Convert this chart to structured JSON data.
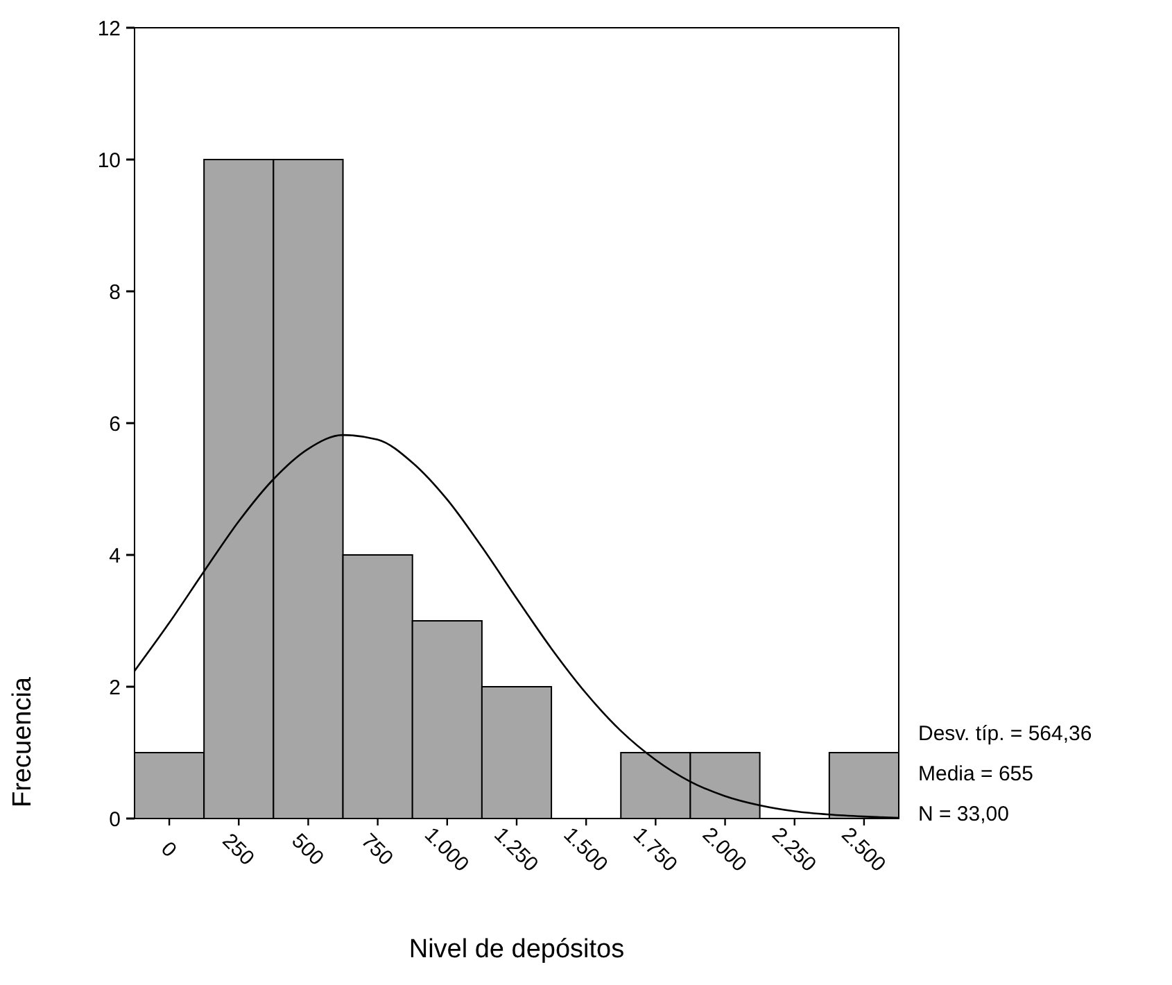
{
  "chart_data": {
    "type": "histogram",
    "xlabel": "Nivel de depósitos",
    "ylabel": "Frecuencia",
    "bins": [
      -125,
      125,
      375,
      625,
      875,
      1125,
      1375,
      1625,
      1875,
      2125,
      2375,
      2625
    ],
    "values": [
      1,
      10,
      10,
      4,
      3,
      2,
      0,
      1,
      1,
      0,
      1
    ],
    "color": "#a6a6a6",
    "series": [
      {
        "type": "line",
        "color": "#000000",
        "x": [
          -125,
          0,
          125,
          250,
          375,
          500,
          625,
          750,
          875,
          1000,
          1125,
          1250,
          1375,
          1500,
          1625,
          1750,
          1875,
          2000,
          2125,
          2250,
          2375,
          2500,
          2625
        ],
        "values": [
          2.24,
          2.97,
          3.75,
          4.51,
          5.15,
          5.61,
          5.82,
          5.75,
          5.4,
          4.84,
          4.12,
          3.34,
          2.58,
          1.9,
          1.33,
          0.89,
          0.56,
          0.34,
          0.2,
          0.11,
          0.06,
          0.03,
          0.01
        ]
      }
    ],
    "xlim": [
      -125,
      2625
    ],
    "xticks": [
      0,
      250,
      500,
      750,
      {
        "value": 1000,
        "label": "1.000"
      },
      {
        "value": 1250,
        "label": "1.250"
      },
      {
        "value": 1500,
        "label": "1.500"
      },
      {
        "value": 1750,
        "label": "1.750"
      },
      {
        "value": 2000,
        "label": "2.000"
      },
      {
        "value": 2250,
        "label": "2.250"
      },
      {
        "value": 2500,
        "label": "2.500"
      }
    ],
    "ylim": [
      0,
      12
    ],
    "yticks": [
      0,
      2,
      4,
      6,
      8,
      10,
      12
    ],
    "annotations": [
      "Desv. típ. = 564,36",
      "Media = 655",
      "N = 33,00"
    ]
  }
}
